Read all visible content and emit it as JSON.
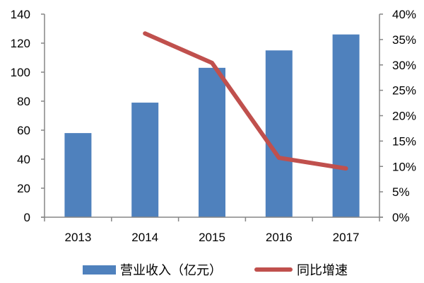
{
  "chart_data": {
    "type": "bar+line",
    "title": "",
    "categories": [
      "2013",
      "2014",
      "2015",
      "2016",
      "2017"
    ],
    "series": [
      {
        "name": "营业收入（亿元）",
        "type": "bar",
        "axis": "left",
        "color": "#4f81bd",
        "values": [
          58,
          79,
          103,
          115,
          126
        ]
      },
      {
        "name": "同比增速",
        "type": "line",
        "axis": "right",
        "color": "#c0504d",
        "values": [
          null,
          0.362,
          0.304,
          0.117,
          0.096
        ]
      }
    ],
    "left_axis": {
      "ylim": [
        0,
        140
      ],
      "ticks": [
        "0",
        "20",
        "40",
        "60",
        "80",
        "100",
        "120",
        "140"
      ]
    },
    "right_axis": {
      "ylim": [
        0,
        0.4
      ],
      "ticks": [
        "0%",
        "5%",
        "10%",
        "15%",
        "20%",
        "25%",
        "30%",
        "35%",
        "40%"
      ]
    },
    "grid": false,
    "legend_position": "bottom"
  },
  "legend": {
    "bar_label": "营业收入（亿元）",
    "line_label": "同比增速"
  }
}
